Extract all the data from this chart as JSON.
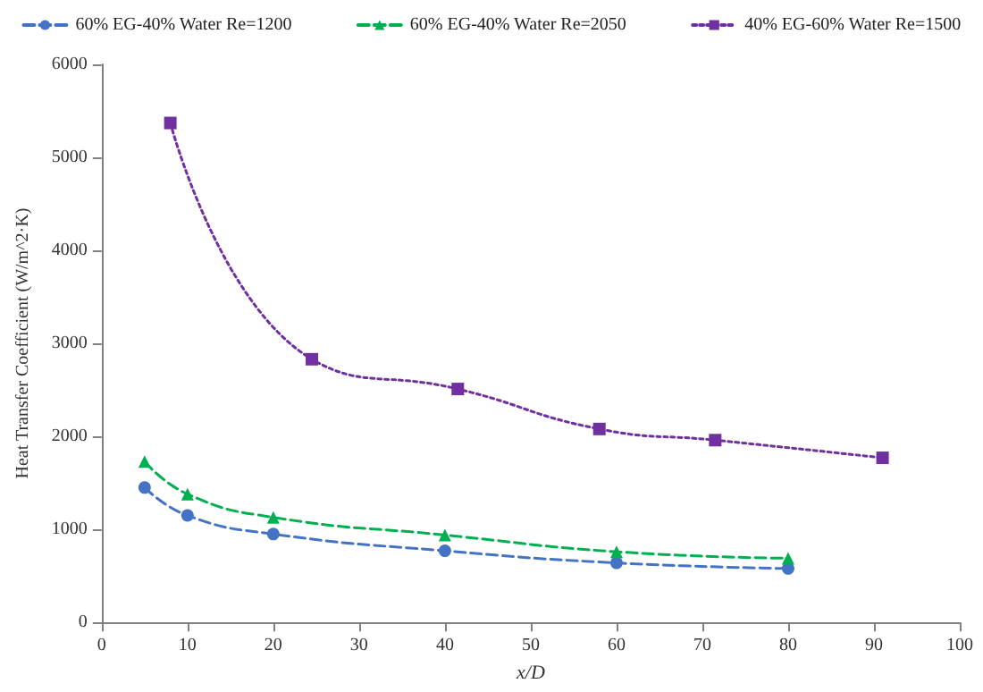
{
  "chart_data": {
    "type": "line",
    "xlabel": "x/D",
    "ylabel": "Heat Transfer Coefficient (W/m^2·K)",
    "xlim": [
      0,
      100
    ],
    "xticks": [
      0,
      10,
      20,
      30,
      40,
      50,
      60,
      70,
      80,
      90,
      100
    ],
    "ylim": [
      0,
      6000
    ],
    "yticks": [
      0,
      1000,
      2000,
      3000,
      4000,
      5000,
      6000
    ],
    "grid": false,
    "legend": "top",
    "series": [
      {
        "name": "60% EG-40% Water Re=1200",
        "color": "#4472c4",
        "marker": "circle",
        "line_style": "dashed",
        "x": [
          5,
          10,
          20,
          40,
          60,
          80
        ],
        "values": [
          1450,
          1150,
          950,
          770,
          640,
          580
        ]
      },
      {
        "name": "60% EG-40% Water Re=2050",
        "color": "#00b050",
        "marker": "triangle",
        "line_style": "dashed",
        "x": [
          5,
          10,
          20,
          40,
          60,
          80
        ],
        "values": [
          1730,
          1380,
          1130,
          940,
          760,
          690
        ]
      },
      {
        "name": "40% EG-60% Water Re=1500",
        "color": "#7030a0",
        "marker": "square",
        "line_style": "dotted",
        "x": [
          8,
          24.5,
          41.5,
          58,
          71.5,
          91
        ],
        "values": [
          5370,
          2830,
          2510,
          2080,
          1960,
          1770
        ]
      }
    ]
  }
}
